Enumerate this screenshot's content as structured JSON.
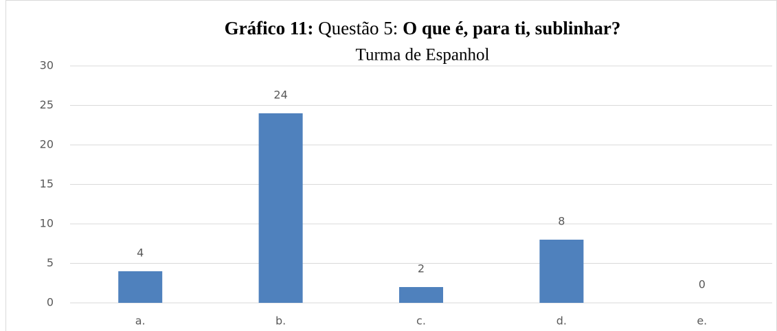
{
  "chart_data": {
    "type": "bar",
    "title": [
      "Gráfico 11:",
      "Questão 5:",
      "O que é, para ti, sublinhar?"
    ],
    "subtitle": "Turma de Espanhol",
    "categories": [
      "a.",
      "b.",
      "c.",
      "d.",
      "e."
    ],
    "values": [
      4,
      24,
      2,
      8,
      0
    ],
    "color": "#4f81bd",
    "ylim": [
      0,
      30
    ],
    "yticks": [
      0,
      5,
      10,
      15,
      20,
      25,
      30
    ],
    "grid": true
  }
}
